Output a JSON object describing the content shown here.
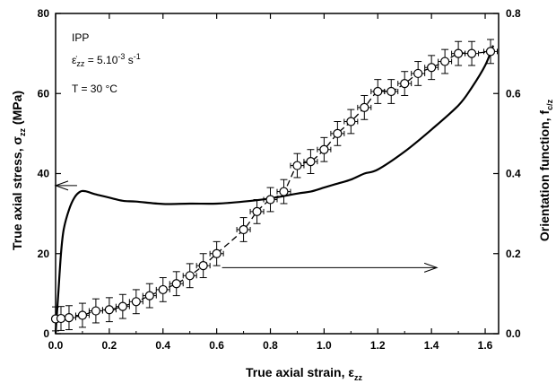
{
  "chart_data": {
    "type": "line",
    "annotations": {
      "material": "IPP",
      "strain_rate": {
        "prefix": "ε̇",
        "sub": "zz",
        "eq": " = 5.10",
        "exp": "-3",
        "unit": " s",
        "unit_exp": "-1"
      },
      "temperature": "T = 30 °C"
    },
    "xaxis": {
      "label_main": "True axial strain, ε",
      "label_sub": "zz",
      "lim": [
        0,
        1.65
      ],
      "ticks": [
        0.0,
        0.2,
        0.4,
        0.6,
        0.8,
        1.0,
        1.2,
        1.4,
        1.6
      ],
      "tick_labels": [
        "0.0",
        "0.2",
        "0.4",
        "0.6",
        "0.8",
        "1.0",
        "1.2",
        "1.4",
        "1.6"
      ]
    },
    "yaxis_left": {
      "label_main": "True axial stress, σ",
      "label_sub": "zz",
      "label_tail": " (MPa)",
      "lim": [
        0,
        80
      ],
      "ticks": [
        0,
        20,
        40,
        60,
        80
      ],
      "tick_labels": [
        "0",
        "20",
        "40",
        "60",
        "80"
      ]
    },
    "yaxis_right": {
      "label_main": "Orientation function, f",
      "label_sub": "c/z",
      "lim": [
        0,
        0.8
      ],
      "ticks": [
        0.0,
        0.2,
        0.4,
        0.6,
        0.8
      ],
      "tick_labels": [
        "0.0",
        "0.2",
        "0.4",
        "0.6",
        "0.8"
      ]
    },
    "series": [
      {
        "axis": "left",
        "style": "solid",
        "x": [
          0.0,
          0.01,
          0.02,
          0.03,
          0.05,
          0.07,
          0.09,
          0.11,
          0.15,
          0.2,
          0.25,
          0.3,
          0.4,
          0.5,
          0.6,
          0.7,
          0.8,
          0.9,
          0.95,
          1.0,
          1.05,
          1.1,
          1.15,
          1.2,
          1.3,
          1.4,
          1.5,
          1.55,
          1.6,
          1.63
        ],
        "y": [
          0,
          10,
          20,
          26,
          31,
          34,
          35.4,
          35.6,
          34.8,
          34,
          33.2,
          33,
          32.4,
          32.5,
          32.5,
          33,
          33.8,
          35,
          35.5,
          36.5,
          37.5,
          38.5,
          40,
          41,
          45.5,
          51,
          57,
          61.5,
          67,
          72
        ]
      },
      {
        "axis": "right",
        "style": "dashed",
        "markers": "open-circle",
        "error_bars": true,
        "x": [
          0.0,
          0.02,
          0.05,
          0.1,
          0.15,
          0.2,
          0.25,
          0.3,
          0.35,
          0.4,
          0.45,
          0.5,
          0.55,
          0.6,
          0.7,
          0.75,
          0.8,
          0.85,
          0.9,
          0.95,
          1.0,
          1.05,
          1.1,
          1.15,
          1.2,
          1.25,
          1.3,
          1.35,
          1.4,
          1.45,
          1.5,
          1.55,
          1.62
        ],
        "y": [
          0.037,
          0.038,
          0.04,
          0.046,
          0.057,
          0.06,
          0.068,
          0.08,
          0.095,
          0.11,
          0.125,
          0.145,
          0.17,
          0.2,
          0.26,
          0.305,
          0.335,
          0.355,
          0.42,
          0.43,
          0.46,
          0.5,
          0.53,
          0.565,
          0.605,
          0.605,
          0.625,
          0.65,
          0.665,
          0.68,
          0.7,
          0.7,
          0.705
        ],
        "xerr": 0.025,
        "yerr": 0.03
      }
    ],
    "axis_arrows": [
      {
        "points_to": "left",
        "at_y_left": 37,
        "from_x": 0.08,
        "to_x": 0.0
      },
      {
        "points_to": "right",
        "at_y_right": 0.165,
        "from_x": 0.62,
        "to_x": 1.42
      }
    ]
  }
}
